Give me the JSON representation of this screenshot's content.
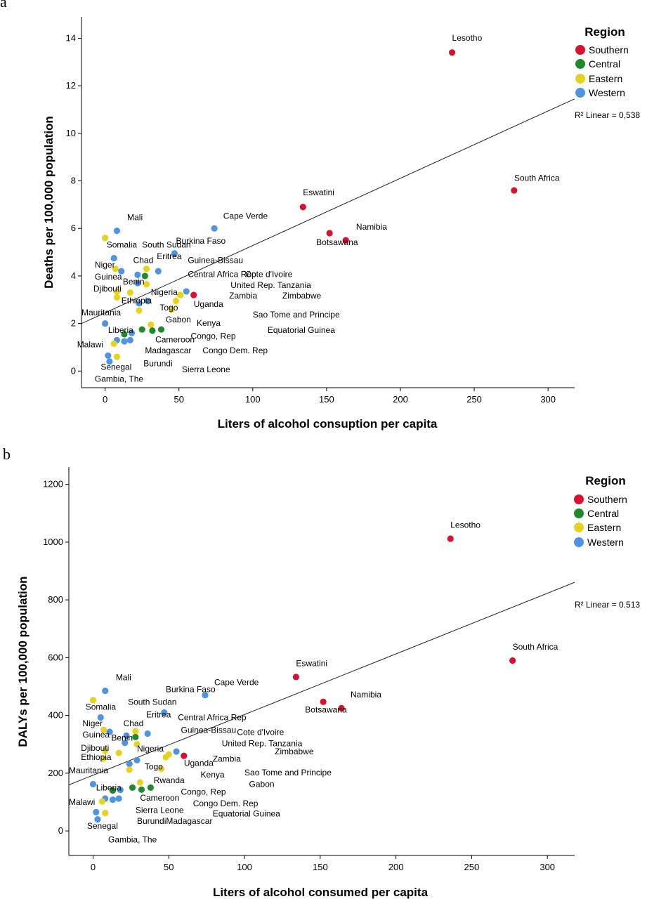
{
  "chart_data": [
    {
      "type": "scatter",
      "panel_label": "a",
      "xlabel": "Liters of alcohol consuption per capita",
      "ylabel": "Deaths per 100,000 population",
      "xlim": [
        -16,
        318
      ],
      "ylim": [
        -0.7,
        14.9
      ],
      "xticks": [
        0,
        50,
        100,
        150,
        200,
        250,
        300
      ],
      "yticks": [
        0,
        2,
        4,
        6,
        8,
        10,
        12,
        14
      ],
      "legend": {
        "title": "Region",
        "placement": "top-right",
        "entries": [
          "Southern",
          "Central",
          "Eastern",
          "Western"
        ]
      },
      "colors": {
        "Southern": "#d7112e",
        "Central": "#1e8a2c",
        "Eastern": "#e5d31c",
        "Western": "#4f94e0"
      },
      "fit": {
        "label": "R² Linear = 0,538",
        "intercept": 2.45,
        "slope": 0.0283
      },
      "points": [
        {
          "x": 235,
          "y": 13.4,
          "region": "Southern"
        },
        {
          "x": 277,
          "y": 7.6,
          "region": "Southern"
        },
        {
          "x": 134,
          "y": 6.9,
          "region": "Southern"
        },
        {
          "x": 152,
          "y": 5.8,
          "region": "Southern"
        },
        {
          "x": 163,
          "y": 5.5,
          "region": "Southern"
        },
        {
          "x": 60,
          "y": 3.2,
          "region": "Southern"
        },
        {
          "x": 74,
          "y": 6.0,
          "region": "Western"
        },
        {
          "x": 8,
          "y": 5.9,
          "region": "Western"
        },
        {
          "x": 0,
          "y": 5.6,
          "region": "Eastern"
        },
        {
          "x": 47,
          "y": 4.95,
          "region": "Western"
        },
        {
          "x": 6,
          "y": 4.75,
          "region": "Western"
        },
        {
          "x": 7,
          "y": 4.3,
          "region": "Eastern"
        },
        {
          "x": 11,
          "y": 4.2,
          "region": "Western"
        },
        {
          "x": 28,
          "y": 4.3,
          "region": "Eastern"
        },
        {
          "x": 27,
          "y": 4.0,
          "region": "Central"
        },
        {
          "x": 22,
          "y": 4.05,
          "region": "Western"
        },
        {
          "x": 36,
          "y": 4.2,
          "region": "Western"
        },
        {
          "x": 22,
          "y": 3.7,
          "region": "Western"
        },
        {
          "x": 28,
          "y": 3.65,
          "region": "Eastern"
        },
        {
          "x": 55,
          "y": 3.35,
          "region": "Western"
        },
        {
          "x": 51,
          "y": 3.2,
          "region": "Eastern"
        },
        {
          "x": 8,
          "y": 3.35,
          "region": "Eastern"
        },
        {
          "x": 17,
          "y": 3.3,
          "region": "Eastern"
        },
        {
          "x": 8,
          "y": 3.1,
          "region": "Eastern"
        },
        {
          "x": 29,
          "y": 2.95,
          "region": "Western"
        },
        {
          "x": 23,
          "y": 2.85,
          "region": "Western"
        },
        {
          "x": 48,
          "y": 2.95,
          "region": "Eastern"
        },
        {
          "x": 45,
          "y": 2.6,
          "region": "Eastern"
        },
        {
          "x": 23,
          "y": 2.55,
          "region": "Eastern"
        },
        {
          "x": 0,
          "y": 2.0,
          "region": "Western"
        },
        {
          "x": 31,
          "y": 1.95,
          "region": "Eastern"
        },
        {
          "x": 25,
          "y": 1.75,
          "region": "Central"
        },
        {
          "x": 32,
          "y": 1.7,
          "region": "Central"
        },
        {
          "x": 38,
          "y": 1.75,
          "region": "Central"
        },
        {
          "x": 13,
          "y": 1.55,
          "region": "Central"
        },
        {
          "x": 18,
          "y": 1.6,
          "region": "Western"
        },
        {
          "x": 8,
          "y": 1.3,
          "region": "Western"
        },
        {
          "x": 13,
          "y": 1.25,
          "region": "Western"
        },
        {
          "x": 17,
          "y": 1.3,
          "region": "Western"
        },
        {
          "x": 6,
          "y": 1.15,
          "region": "Eastern"
        },
        {
          "x": 8,
          "y": 0.6,
          "region": "Eastern"
        },
        {
          "x": 2,
          "y": 0.65,
          "region": "Western"
        },
        {
          "x": 3,
          "y": 0.4,
          "region": "Western"
        }
      ],
      "labels": [
        {
          "text": "Lesotho",
          "x": 235,
          "y": 13.9
        },
        {
          "text": "South Africa",
          "x": 277,
          "y": 8.0
        },
        {
          "text": "Eswatini",
          "x": 134,
          "y": 7.4
        },
        {
          "text": "Namibia",
          "x": 170,
          "y": 5.95
        },
        {
          "text": "Botsawana",
          "x": 143,
          "y": 5.3
        },
        {
          "text": "Cape Verde",
          "x": 80,
          "y": 6.4
        },
        {
          "text": "Mali",
          "x": 15,
          "y": 6.35
        },
        {
          "text": "Somalia",
          "x": 1,
          "y": 5.2
        },
        {
          "text": "South Sudan",
          "x": 25,
          "y": 5.2
        },
        {
          "text": "Burkina Faso",
          "x": 48,
          "y": 5.35
        },
        {
          "text": "Niger",
          "x": -7,
          "y": 4.35
        },
        {
          "text": "Chad",
          "x": 19,
          "y": 4.55
        },
        {
          "text": "Eritrea",
          "x": 35,
          "y": 4.7
        },
        {
          "text": "Guinea-Bissau",
          "x": 56,
          "y": 4.55
        },
        {
          "text": "Guinea",
          "x": -7,
          "y": 3.85
        },
        {
          "text": "Benin",
          "x": 12,
          "y": 3.65
        },
        {
          "text": "Central Africa Rep",
          "x": 56,
          "y": 3.95
        },
        {
          "text": "Cote d'Ivoire",
          "x": 95,
          "y": 3.95
        },
        {
          "text": "Djibouti",
          "x": -8,
          "y": 3.35
        },
        {
          "text": "Nigeria",
          "x": 31,
          "y": 3.2
        },
        {
          "text": "United Rep. Tanzania",
          "x": 85,
          "y": 3.5
        },
        {
          "text": "Zimbabwe",
          "x": 120,
          "y": 3.05
        },
        {
          "text": "Zambia",
          "x": 84,
          "y": 3.05
        },
        {
          "text": "Ethiopia",
          "x": 11,
          "y": 2.85
        },
        {
          "text": "Uganda",
          "x": 60,
          "y": 2.7
        },
        {
          "text": "Togo",
          "x": 37,
          "y": 2.55
        },
        {
          "text": "Sao Tome and Principe",
          "x": 100,
          "y": 2.25
        },
        {
          "text": "Mauritania",
          "x": -16,
          "y": 2.35
        },
        {
          "text": "Gabon",
          "x": 41,
          "y": 2.05
        },
        {
          "text": "Kenya",
          "x": 62,
          "y": 1.9
        },
        {
          "text": "Equatorial Guinea",
          "x": 110,
          "y": 1.6
        },
        {
          "text": "Liberia",
          "x": 2,
          "y": 1.6
        },
        {
          "text": "Congo, Rep",
          "x": 58,
          "y": 1.35
        },
        {
          "text": "Cameroon",
          "x": 34,
          "y": 1.2
        },
        {
          "text": "Malawi",
          "x": -19,
          "y": 1.0
        },
        {
          "text": "Congo Dem. Rep",
          "x": 66,
          "y": 0.75
        },
        {
          "text": "Madagascar",
          "x": 27,
          "y": 0.75
        },
        {
          "text": "Burundi",
          "x": 26,
          "y": 0.2
        },
        {
          "text": "Senegal",
          "x": -3,
          "y": 0.05
        },
        {
          "text": "Sierra Leone",
          "x": 52,
          "y": -0.05
        },
        {
          "text": "Gambia, The",
          "x": -7,
          "y": -0.45
        }
      ]
    },
    {
      "type": "scatter",
      "panel_label": "b",
      "xlabel": "Liters of alcohol consumed per capita",
      "ylabel": "DALYs per 100,000 population",
      "xlim": [
        -16,
        318
      ],
      "ylim": [
        -85,
        1260
      ],
      "xticks": [
        0,
        50,
        100,
        150,
        200,
        250,
        300
      ],
      "yticks": [
        0,
        200,
        400,
        600,
        800,
        1000,
        1200
      ],
      "legend": {
        "title": "Region",
        "placement": "top-right",
        "entries": [
          "Southern",
          "Central",
          "Eastern",
          "Western"
        ]
      },
      "colors": {
        "Southern": "#d7112e",
        "Central": "#1e8a2c",
        "Eastern": "#e5d31c",
        "Western": "#4f94e0"
      },
      "fit": {
        "label": "R² Linear = 0.513",
        "intercept": 193,
        "slope": 2.1
      },
      "points": [
        {
          "x": 236,
          "y": 1012,
          "region": "Southern"
        },
        {
          "x": 277,
          "y": 590,
          "region": "Southern"
        },
        {
          "x": 134,
          "y": 533,
          "region": "Southern"
        },
        {
          "x": 152,
          "y": 447,
          "region": "Southern"
        },
        {
          "x": 164,
          "y": 425,
          "region": "Southern"
        },
        {
          "x": 60,
          "y": 260,
          "region": "Southern"
        },
        {
          "x": 74,
          "y": 470,
          "region": "Western"
        },
        {
          "x": 8,
          "y": 485,
          "region": "Western"
        },
        {
          "x": 0,
          "y": 453,
          "region": "Eastern"
        },
        {
          "x": 47,
          "y": 410,
          "region": "Western"
        },
        {
          "x": 5,
          "y": 393,
          "region": "Western"
        },
        {
          "x": 11,
          "y": 343,
          "region": "Western"
        },
        {
          "x": 7,
          "y": 350,
          "region": "Eastern"
        },
        {
          "x": 28,
          "y": 345,
          "region": "Eastern"
        },
        {
          "x": 28,
          "y": 325,
          "region": "Central"
        },
        {
          "x": 22,
          "y": 330,
          "region": "Western"
        },
        {
          "x": 36,
          "y": 337,
          "region": "Western"
        },
        {
          "x": 21,
          "y": 305,
          "region": "Western"
        },
        {
          "x": 29,
          "y": 300,
          "region": "Eastern"
        },
        {
          "x": 55,
          "y": 275,
          "region": "Western"
        },
        {
          "x": 50,
          "y": 265,
          "region": "Eastern"
        },
        {
          "x": 48,
          "y": 255,
          "region": "Eastern"
        },
        {
          "x": 8,
          "y": 278,
          "region": "Eastern"
        },
        {
          "x": 17,
          "y": 270,
          "region": "Eastern"
        },
        {
          "x": 7,
          "y": 250,
          "region": "Eastern"
        },
        {
          "x": 29,
          "y": 245,
          "region": "Western"
        },
        {
          "x": 24,
          "y": 232,
          "region": "Western"
        },
        {
          "x": 45,
          "y": 215,
          "region": "Eastern"
        },
        {
          "x": 24,
          "y": 212,
          "region": "Eastern"
        },
        {
          "x": 0,
          "y": 162,
          "region": "Western"
        },
        {
          "x": 31,
          "y": 168,
          "region": "Eastern"
        },
        {
          "x": 26,
          "y": 150,
          "region": "Central"
        },
        {
          "x": 32,
          "y": 143,
          "region": "Central"
        },
        {
          "x": 38,
          "y": 150,
          "region": "Central"
        },
        {
          "x": 13,
          "y": 140,
          "region": "Central"
        },
        {
          "x": 18,
          "y": 142,
          "region": "Western"
        },
        {
          "x": 8,
          "y": 112,
          "region": "Western"
        },
        {
          "x": 13,
          "y": 108,
          "region": "Western"
        },
        {
          "x": 17,
          "y": 112,
          "region": "Western"
        },
        {
          "x": 6,
          "y": 102,
          "region": "Eastern"
        },
        {
          "x": 8,
          "y": 62,
          "region": "Eastern"
        },
        {
          "x": 2,
          "y": 65,
          "region": "Western"
        },
        {
          "x": 3,
          "y": 40,
          "region": "Western"
        }
      ],
      "labels": [
        {
          "text": "Lesotho",
          "x": 236,
          "y": 1050
        },
        {
          "text": "South Africa",
          "x": 277,
          "y": 628
        },
        {
          "text": "Eswatini",
          "x": 134,
          "y": 570
        },
        {
          "text": "Namibia",
          "x": 170,
          "y": 462
        },
        {
          "text": "Botsawana",
          "x": 140,
          "y": 410
        },
        {
          "text": "Cape Verde",
          "x": 80,
          "y": 505
        },
        {
          "text": "Mali",
          "x": 15,
          "y": 522
        },
        {
          "text": "Burkina Faso",
          "x": 48,
          "y": 480
        },
        {
          "text": "Somalia",
          "x": -5,
          "y": 420
        },
        {
          "text": "South Sudan",
          "x": 23,
          "y": 437
        },
        {
          "text": "Eritrea",
          "x": 35,
          "y": 393
        },
        {
          "text": "Central Africa Rep",
          "x": 56,
          "y": 383
        },
        {
          "text": "Niger",
          "x": -7,
          "y": 362
        },
        {
          "text": "Chad",
          "x": 20,
          "y": 363
        },
        {
          "text": "Guinea-Bissau",
          "x": 58,
          "y": 340
        },
        {
          "text": "Cote d'Ivoire",
          "x": 95,
          "y": 332
        },
        {
          "text": "Guinea",
          "x": -7,
          "y": 323
        },
        {
          "text": "Benin",
          "x": 12,
          "y": 313
        },
        {
          "text": "United Rep. Tanzania",
          "x": 85,
          "y": 293
        },
        {
          "text": "Djibouti",
          "x": -8,
          "y": 277
        },
        {
          "text": "Nigeria",
          "x": 29,
          "y": 275
        },
        {
          "text": "Zimbabwe",
          "x": 120,
          "y": 265
        },
        {
          "text": "Ethiopia",
          "x": -8,
          "y": 246
        },
        {
          "text": "Zambia",
          "x": 79,
          "y": 240
        },
        {
          "text": "Uganda",
          "x": 60,
          "y": 225
        },
        {
          "text": "Togo",
          "x": 34,
          "y": 213
        },
        {
          "text": "Mauritania",
          "x": -16,
          "y": 200
        },
        {
          "text": "Kenya",
          "x": 71,
          "y": 185
        },
        {
          "text": "Sao Tome and Principe",
          "x": 100,
          "y": 192
        },
        {
          "text": "Rwanda",
          "x": 40,
          "y": 166
        },
        {
          "text": "Gabon",
          "x": 103,
          "y": 152
        },
        {
          "text": "Liberia",
          "x": 2,
          "y": 140
        },
        {
          "text": "Congo, Rep",
          "x": 58,
          "y": 125
        },
        {
          "text": "Cameroon",
          "x": 31,
          "y": 105
        },
        {
          "text": "Malawi",
          "x": -16,
          "y": 90
        },
        {
          "text": "Congo Dem. Rep",
          "x": 66,
          "y": 85
        },
        {
          "text": "Sierra Leone",
          "x": 28,
          "y": 62
        },
        {
          "text": "Equatorial Guinea",
          "x": 79,
          "y": 50
        },
        {
          "text": "Senegal",
          "x": -4,
          "y": 8
        },
        {
          "text": "BurundiMadagascar",
          "x": 29,
          "y": 25
        },
        {
          "text": "Gambia, The",
          "x": 10,
          "y": -40
        }
      ]
    }
  ]
}
